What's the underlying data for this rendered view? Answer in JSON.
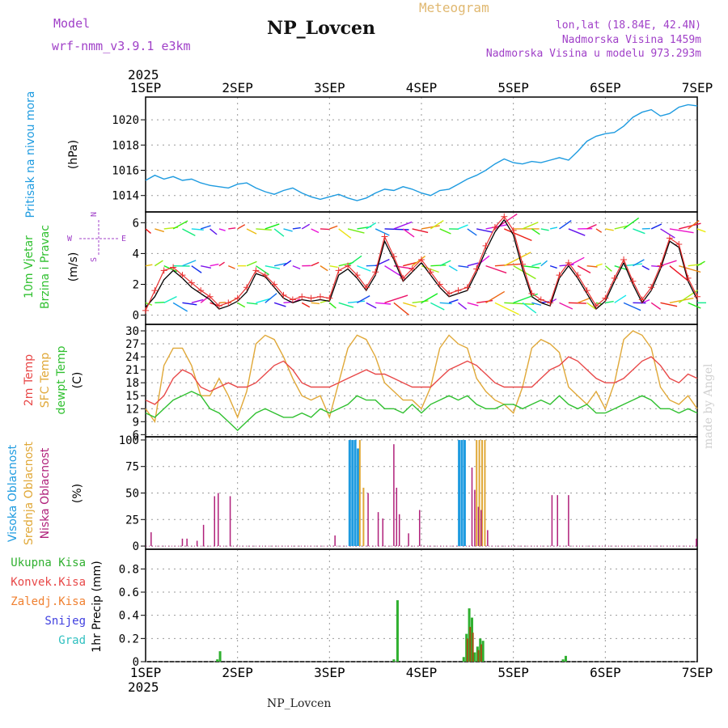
{
  "header": {
    "model_label": "Model",
    "model_name": "wrf-nmm_v3.9.1 e3km",
    "station": "NP_Lovcen",
    "chart_type": "Meteogram",
    "lonlat": "lon,lat (18.84E, 42.4N)",
    "altitude": "Nadmorska Visina 1459m",
    "model_altitude": "Nadmorska Visina u modelu 973.293m"
  },
  "footer": {
    "station": "NP_Lovcen",
    "credit": "made by Angel"
  },
  "colors": {
    "pressure": "#1e9be0",
    "wind_black": "#000000",
    "wind_red": "#e83030",
    "temp2m": "#e84848",
    "sfc": "#e0a838",
    "dew": "#30c030",
    "high_cloud": "#1e9be0",
    "mid_cloud": "#e0a838",
    "low_cloud": "#b0207a",
    "rain": "#30b030",
    "conv": "#a05010",
    "label_purple": "#a040c8"
  },
  "chart_data": [
    {
      "type": "line",
      "name": "pressure",
      "title": "Pritisak na nivou mora",
      "ylabel": "(hPa)",
      "year": "2025",
      "x_ticks": [
        "1SEP",
        "2SEP",
        "3SEP",
        "4SEP",
        "5SEP",
        "6SEP",
        "7SEP"
      ],
      "ylim": [
        1012.7,
        1021.8
      ],
      "yticks": [
        1014,
        1016,
        1018,
        1020
      ],
      "x": [
        0,
        0.1,
        0.2,
        0.3,
        0.4,
        0.5,
        0.6,
        0.7,
        0.8,
        0.9,
        1.0,
        1.1,
        1.2,
        1.3,
        1.4,
        1.5,
        1.6,
        1.7,
        1.8,
        1.9,
        2.0,
        2.1,
        2.2,
        2.3,
        2.4,
        2.5,
        2.6,
        2.7,
        2.8,
        2.9,
        3.0,
        3.1,
        3.2,
        3.3,
        3.4,
        3.5,
        3.6,
        3.7,
        3.8,
        3.9,
        4.0,
        4.1,
        4.2,
        4.3,
        4.4,
        4.5,
        4.6,
        4.7,
        4.8,
        4.9,
        5.0,
        5.1,
        5.2,
        5.3,
        5.4,
        5.5,
        5.6,
        5.7,
        5.8,
        5.9,
        6.0
      ],
      "values": [
        1015.2,
        1015.6,
        1015.3,
        1015.5,
        1015.2,
        1015.3,
        1015.0,
        1014.8,
        1014.7,
        1014.6,
        1014.9,
        1015.0,
        1014.6,
        1014.3,
        1014.1,
        1014.4,
        1014.6,
        1014.2,
        1013.9,
        1013.7,
        1013.9,
        1014.1,
        1013.8,
        1013.6,
        1013.8,
        1014.2,
        1014.5,
        1014.4,
        1014.7,
        1014.5,
        1014.2,
        1014.0,
        1014.4,
        1014.5,
        1014.9,
        1015.3,
        1015.6,
        1016.0,
        1016.5,
        1016.9,
        1016.6,
        1016.5,
        1016.7,
        1016.6,
        1016.8,
        1017.0,
        1016.8,
        1017.5,
        1018.3,
        1018.7,
        1018.9,
        1019.0,
        1019.5,
        1020.2,
        1020.6,
        1020.8,
        1020.3,
        1020.5,
        1021.0,
        1021.2,
        1021.1
      ]
    },
    {
      "type": "line",
      "name": "wind",
      "title": "10m Vjetar",
      "subtitle": "Brzina i Pravac",
      "ylabel": "(m/s)",
      "compass": {
        "n": "N",
        "w": "W",
        "e": "E",
        "s": "S"
      },
      "ylim": [
        -0.6,
        6.7
      ],
      "yticks": [
        0,
        2,
        4,
        6
      ],
      "x": [
        0,
        0.1,
        0.2,
        0.3,
        0.4,
        0.5,
        0.6,
        0.7,
        0.8,
        0.9,
        1.0,
        1.1,
        1.2,
        1.3,
        1.4,
        1.5,
        1.6,
        1.7,
        1.8,
        1.9,
        2.0,
        2.1,
        2.2,
        2.3,
        2.4,
        2.5,
        2.6,
        2.7,
        2.8,
        2.9,
        3.0,
        3.1,
        3.2,
        3.3,
        3.4,
        3.5,
        3.6,
        3.7,
        3.8,
        3.9,
        4.0,
        4.1,
        4.2,
        4.3,
        4.4,
        4.5,
        4.6,
        4.7,
        4.8,
        4.9,
        5.0,
        5.1,
        5.2,
        5.3,
        5.4,
        5.5,
        5.6,
        5.7,
        5.8,
        5.9,
        6.0
      ],
      "speed": [
        0.5,
        1.2,
        2.3,
        2.9,
        2.4,
        1.8,
        1.4,
        1.0,
        0.4,
        0.6,
        0.9,
        1.5,
        2.7,
        2.5,
        1.8,
        1.1,
        0.8,
        1.0,
        0.9,
        1.0,
        0.9,
        2.6,
        3.0,
        2.4,
        1.6,
        2.6,
        4.8,
        3.6,
        2.2,
        2.8,
        3.4,
        2.6,
        1.8,
        1.2,
        1.4,
        1.6,
        2.8,
        4.2,
        5.4,
        6.2,
        5.2,
        3.0,
        1.2,
        0.8,
        0.6,
        2.4,
        3.2,
        2.4,
        1.4,
        0.4,
        0.9,
        2.2,
        3.4,
        2.0,
        0.8,
        1.6,
        3.0,
        4.8,
        4.4,
        2.2,
        1.0
      ],
      "gust": [
        0.3,
        1.6,
        2.9,
        3.1,
        2.6,
        2.1,
        1.6,
        1.2,
        0.6,
        0.8,
        1.1,
        1.8,
        2.9,
        2.6,
        2.0,
        1.3,
        1.0,
        1.2,
        1.1,
        1.2,
        1.1,
        2.9,
        3.2,
        2.6,
        1.8,
        2.8,
        5.1,
        3.8,
        2.4,
        3.0,
        3.6,
        2.8,
        2.0,
        1.4,
        1.6,
        1.8,
        3.0,
        4.5,
        5.7,
        6.4,
        5.5,
        3.3,
        1.4,
        1.0,
        0.8,
        2.6,
        3.4,
        2.6,
        1.6,
        0.6,
        1.1,
        2.4,
        3.6,
        2.2,
        1.0,
        1.8,
        3.2,
        5.0,
        4.6,
        2.4,
        1.2
      ]
    },
    {
      "type": "line",
      "name": "temperature",
      "series_names": [
        "2m Temp",
        "SFC Temp",
        "dewpt Temp"
      ],
      "ylabel": "(C)",
      "ylim": [
        5.5,
        31.5
      ],
      "yticks": [
        6,
        9,
        12,
        15,
        18,
        21,
        24,
        27,
        30
      ],
      "x": [
        0,
        0.1,
        0.2,
        0.3,
        0.4,
        0.5,
        0.6,
        0.7,
        0.8,
        0.9,
        1.0,
        1.1,
        1.2,
        1.3,
        1.4,
        1.5,
        1.6,
        1.7,
        1.8,
        1.9,
        2.0,
        2.1,
        2.2,
        2.3,
        2.4,
        2.5,
        2.6,
        2.7,
        2.8,
        2.9,
        3.0,
        3.1,
        3.2,
        3.3,
        3.4,
        3.5,
        3.6,
        3.7,
        3.8,
        3.9,
        4.0,
        4.1,
        4.2,
        4.3,
        4.4,
        4.5,
        4.6,
        4.7,
        4.8,
        4.9,
        5.0,
        5.1,
        5.2,
        5.3,
        5.4,
        5.5,
        5.6,
        5.7,
        5.8,
        5.9,
        6.0
      ],
      "t2m": [
        14,
        13,
        15,
        19,
        21,
        20,
        17,
        16,
        17,
        18,
        17,
        17,
        18,
        20,
        22,
        23,
        21,
        18,
        17,
        17,
        17,
        18,
        19,
        20,
        21,
        20,
        20,
        19,
        18,
        17,
        17,
        17,
        19,
        21,
        22,
        23,
        22,
        20,
        18,
        17,
        17,
        17,
        17,
        19,
        21,
        22,
        24,
        23,
        21,
        19,
        18,
        18,
        19,
        21,
        23,
        24,
        22,
        19,
        18,
        20,
        19
      ],
      "sfc": [
        12,
        9,
        22,
        26,
        26,
        22,
        15,
        15,
        19,
        15,
        10,
        16,
        27,
        29,
        28,
        24,
        19,
        15,
        14,
        15,
        10,
        18,
        26,
        29,
        28,
        24,
        18,
        16,
        14,
        14,
        12,
        17,
        26,
        29,
        27,
        26,
        19,
        16,
        14,
        13,
        11,
        17,
        26,
        28,
        27,
        25,
        17,
        15,
        13,
        16,
        12,
        18,
        28,
        30,
        29,
        26,
        17,
        14,
        13,
        15,
        12
      ],
      "dew": [
        11,
        10,
        12,
        14,
        15,
        16,
        15,
        12,
        11,
        9,
        7,
        9,
        11,
        12,
        11,
        10,
        10,
        11,
        10,
        12,
        11,
        12,
        13,
        15,
        14,
        14,
        12,
        12,
        11,
        13,
        11,
        13,
        14,
        15,
        14,
        15,
        13,
        12,
        12,
        13,
        13,
        12,
        13,
        14,
        13,
        15,
        13,
        12,
        13,
        11,
        11,
        12,
        13,
        14,
        15,
        14,
        12,
        12,
        11,
        12,
        11
      ]
    },
    {
      "type": "bar",
      "name": "clouds",
      "series_names": [
        "Visoka Oblacnost",
        "Srednja Oblacnost",
        "Niska Oblacnost"
      ],
      "ylabel": "(%)",
      "ylim": [
        -3,
        103
      ],
      "yticks": [
        0,
        25,
        50,
        75,
        100
      ],
      "high": [
        {
          "x": 2.22,
          "v": 100
        },
        {
          "x": 2.25,
          "v": 100
        },
        {
          "x": 2.28,
          "v": 100
        },
        {
          "x": 2.31,
          "v": 92
        },
        {
          "x": 3.41,
          "v": 100
        },
        {
          "x": 3.44,
          "v": 100
        },
        {
          "x": 3.47,
          "v": 100
        }
      ],
      "mid": [
        {
          "x": 2.33,
          "v": 100
        },
        {
          "x": 2.37,
          "v": 55
        },
        {
          "x": 3.6,
          "v": 100
        },
        {
          "x": 3.63,
          "v": 100
        },
        {
          "x": 3.66,
          "v": 100
        },
        {
          "x": 3.69,
          "v": 100
        }
      ],
      "low": [
        {
          "x": 0.06,
          "v": 13
        },
        {
          "x": 0.4,
          "v": 7
        },
        {
          "x": 0.45,
          "v": 7
        },
        {
          "x": 0.56,
          "v": 5
        },
        {
          "x": 0.63,
          "v": 20
        },
        {
          "x": 0.75,
          "v": 47
        },
        {
          "x": 0.79,
          "v": 50
        },
        {
          "x": 0.92,
          "v": 47
        },
        {
          "x": 2.06,
          "v": 10
        },
        {
          "x": 2.42,
          "v": 50
        },
        {
          "x": 2.53,
          "v": 32
        },
        {
          "x": 2.58,
          "v": 26
        },
        {
          "x": 2.7,
          "v": 96
        },
        {
          "x": 2.73,
          "v": 55
        },
        {
          "x": 2.76,
          "v": 30
        },
        {
          "x": 2.86,
          "v": 12
        },
        {
          "x": 2.98,
          "v": 34
        },
        {
          "x": 3.55,
          "v": 74
        },
        {
          "x": 3.58,
          "v": 53
        },
        {
          "x": 3.62,
          "v": 37
        },
        {
          "x": 3.65,
          "v": 34
        },
        {
          "x": 3.72,
          "v": 15
        },
        {
          "x": 4.42,
          "v": 48
        },
        {
          "x": 4.48,
          "v": 48
        },
        {
          "x": 4.6,
          "v": 48
        },
        {
          "x": 5.99,
          "v": 7
        }
      ]
    },
    {
      "type": "bar",
      "name": "precipitation",
      "series_names": [
        "Ukupna Kisa",
        "Konvek.Kisa",
        "Zaledj.Kisa",
        "Snijeg",
        "Grad"
      ],
      "ylabel": "1hr Precip (mm)",
      "ylim": [
        0,
        0.97
      ],
      "yticks": [
        0,
        0.2,
        0.4,
        0.6,
        0.8
      ],
      "total": [
        {
          "x": 0.78,
          "v": 0.02
        },
        {
          "x": 0.81,
          "v": 0.09
        },
        {
          "x": 2.7,
          "v": 0.02
        },
        {
          "x": 2.74,
          "v": 0.53
        },
        {
          "x": 3.46,
          "v": 0.04
        },
        {
          "x": 3.49,
          "v": 0.24
        },
        {
          "x": 3.52,
          "v": 0.46
        },
        {
          "x": 3.55,
          "v": 0.38
        },
        {
          "x": 3.58,
          "v": 0.08
        },
        {
          "x": 3.61,
          "v": 0.13
        },
        {
          "x": 3.64,
          "v": 0.2
        },
        {
          "x": 3.67,
          "v": 0.18
        },
        {
          "x": 4.54,
          "v": 0.02
        },
        {
          "x": 4.57,
          "v": 0.05
        }
      ],
      "convective": [
        {
          "x": 3.5,
          "v": 0.2
        },
        {
          "x": 3.53,
          "v": 0.3
        },
        {
          "x": 3.56,
          "v": 0.25
        },
        {
          "x": 3.62,
          "v": 0.1
        },
        {
          "x": 3.65,
          "v": 0.15
        }
      ],
      "legend": [
        {
          "label": "Ukupna Kisa",
          "color": "#30b030"
        },
        {
          "label": "Konvek.Kisa",
          "color": "#e84848"
        },
        {
          "label": "Zaledj.Kisa",
          "color": "#f08030"
        },
        {
          "label": "Snijeg",
          "color": "#4040e0"
        },
        {
          "label": "Grad",
          "color": "#30c0c0"
        }
      ]
    }
  ]
}
